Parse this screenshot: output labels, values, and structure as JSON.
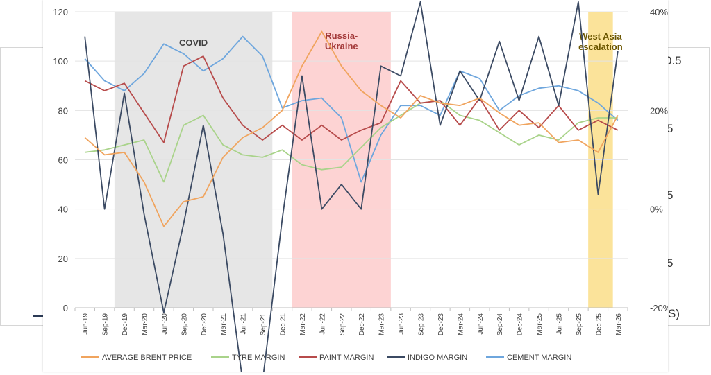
{
  "background": {
    "fragments": [
      "0.5",
      "5",
      "5",
      "5",
      "S)"
    ]
  },
  "chart_data": {
    "type": "line",
    "title": "",
    "xlabel": "",
    "ylabel": "",
    "ylim": [
      0,
      120
    ],
    "y2lim": [
      -20,
      40
    ],
    "y_ticks": [
      "0",
      "20",
      "40",
      "60",
      "80",
      "100",
      "120"
    ],
    "y2_ticks": [
      "-20%",
      "0%",
      "20%",
      "40%"
    ],
    "grid": "horizontal",
    "legend_position": "bottom",
    "categories": [
      "Jun-19",
      "Sep-19",
      "Dec-19",
      "Mar-20",
      "Jun-20",
      "Sep-20",
      "Dec-20",
      "Mar-21",
      "Jun-21",
      "Sep-21",
      "Dec-21",
      "Mar-22",
      "Jun-22",
      "Sep-22",
      "Dec-22",
      "Mar-23",
      "Jun-23",
      "Sep-23",
      "Dec-23",
      "Mar-24",
      "Jun-24",
      "Sep-24",
      "Dec-24",
      "Mar-25",
      "Jun-25",
      "Sep-25",
      "Dec-25",
      "Mar-26"
    ],
    "bands": [
      {
        "label": "COVID",
        "from": "Dec-19",
        "to": "Sep-21",
        "color": "#e6e6e6",
        "label_color": "#404040"
      },
      {
        "label": "Russia-\nUkraine",
        "from": "Mar-22",
        "to": "Mar-23",
        "color": "#fdd3d3",
        "label_color": "#a33a3a"
      },
      {
        "label": "West Asia\nescalation",
        "from": "Dec-25",
        "to": "Dec-25",
        "color": "#fbe39a",
        "label_color": "#6b5600"
      }
    ],
    "series": [
      {
        "name": "AVERAGE BRENT PRICE",
        "axis": "left",
        "color": "#f0a45e",
        "values": [
          69,
          62,
          63,
          51,
          33,
          43,
          45,
          61,
          69,
          73,
          80,
          98,
          112,
          98,
          88,
          82,
          77,
          86,
          83,
          82,
          85,
          79,
          74,
          75,
          67,
          68,
          63,
          78
        ]
      },
      {
        "name": "TYRE MARGIN",
        "axis": "right",
        "color": "#a9d38a",
        "values": [
          11.5,
          12,
          13,
          14,
          5.5,
          17,
          19,
          13,
          11,
          10.5,
          12,
          9,
          8,
          8.5,
          12.5,
          16.5,
          19,
          21.5,
          22,
          19,
          18,
          15.5,
          13,
          15,
          14,
          17.5,
          18.5,
          18.5
        ]
      },
      {
        "name": "PAINT MARGIN",
        "axis": "right",
        "color": "#b74b4b",
        "values": [
          26,
          24,
          25.5,
          19.5,
          13.5,
          29,
          31,
          22.5,
          17,
          14,
          17,
          14,
          17,
          14,
          16,
          17.5,
          26,
          21.5,
          22,
          17,
          22.5,
          16,
          20,
          16.5,
          21,
          16,
          18,
          16
        ]
      },
      {
        "name": "INDIGO MARGIN",
        "axis": "right",
        "color": "#3b4a63",
        "values": [
          35,
          0,
          23.5,
          -1,
          -21,
          -3,
          17,
          -5,
          -35,
          -35,
          -2,
          27,
          0,
          5,
          0,
          29,
          27,
          42,
          17,
          28,
          22,
          34,
          22,
          35,
          21,
          42,
          3,
          32
        ]
      },
      {
        "name": "CEMENT MARGIN",
        "axis": "right",
        "color": "#6ea6dd",
        "values": [
          30.5,
          26,
          24,
          27.5,
          33.5,
          31.5,
          28,
          30.5,
          35,
          31,
          20.5,
          22,
          22.5,
          18.5,
          5.5,
          15,
          21,
          21,
          19,
          28,
          26.5,
          20,
          23,
          24.5,
          25,
          24,
          21.5,
          18
        ]
      }
    ]
  }
}
